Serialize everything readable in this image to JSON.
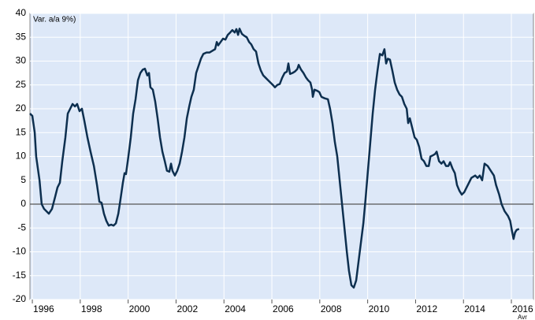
{
  "chart_data": {
    "type": "line",
    "ylabel": "Var. a/a 9%)",
    "annotation": "Avr",
    "color": "#0d2f4f",
    "grid": true,
    "xlim": [
      1995.9,
      2016.92
    ],
    "ylim": [
      -20,
      40
    ],
    "xticks": [
      1996,
      1998,
      2000,
      2002,
      2004,
      2006,
      2008,
      2010,
      2012,
      2014,
      2016
    ],
    "yticks": [
      -20,
      -15,
      -10,
      -5,
      0,
      5,
      10,
      15,
      20,
      25,
      30,
      35,
      40
    ],
    "x": [
      1995.9,
      1996.0,
      1996.1,
      1996.16,
      1996.3,
      1996.39,
      1996.49,
      1996.69,
      1996.82,
      1996.95,
      1997.05,
      1997.15,
      1997.25,
      1997.38,
      1997.48,
      1997.58,
      1997.68,
      1997.78,
      1997.87,
      1997.97,
      1998.07,
      1998.17,
      1998.3,
      1998.43,
      1998.57,
      1998.7,
      1998.8,
      1998.89,
      1998.99,
      1999.09,
      1999.19,
      1999.29,
      1999.39,
      1999.49,
      1999.59,
      1999.68,
      1999.78,
      1999.85,
      1999.91,
      2000.01,
      2000.11,
      2000.21,
      2000.31,
      2000.41,
      2000.51,
      2000.61,
      2000.7,
      2000.8,
      2000.87,
      2000.93,
      2001.03,
      2001.13,
      2001.23,
      2001.33,
      2001.43,
      2001.53,
      2001.62,
      2001.72,
      2001.79,
      2001.85,
      2001.95,
      2002.05,
      2002.15,
      2002.25,
      2002.35,
      2002.45,
      2002.55,
      2002.64,
      2002.74,
      2002.84,
      2002.94,
      2003.04,
      2003.14,
      2003.27,
      2003.4,
      2003.53,
      2003.63,
      2003.7,
      2003.76,
      2003.86,
      2003.96,
      2004.06,
      2004.16,
      2004.26,
      2004.35,
      2004.45,
      2004.52,
      2004.59,
      2004.65,
      2004.75,
      2004.85,
      2004.95,
      2005.05,
      2005.14,
      2005.24,
      2005.34,
      2005.44,
      2005.54,
      2005.64,
      2005.74,
      2005.84,
      2005.94,
      2006.04,
      2006.13,
      2006.23,
      2006.33,
      2006.43,
      2006.53,
      2006.63,
      2006.69,
      2006.76,
      2006.86,
      2006.96,
      2007.06,
      2007.12,
      2007.22,
      2007.32,
      2007.42,
      2007.51,
      2007.61,
      2007.68,
      2007.71,
      2007.78,
      2007.88,
      2007.98,
      2008.07,
      2008.2,
      2008.34,
      2008.43,
      2008.53,
      2008.63,
      2008.73,
      2008.83,
      2008.93,
      2009.03,
      2009.13,
      2009.22,
      2009.32,
      2009.42,
      2009.52,
      2009.62,
      2009.72,
      2009.82,
      2009.91,
      2010.01,
      2010.11,
      2010.21,
      2010.31,
      2010.41,
      2010.51,
      2010.61,
      2010.7,
      2010.77,
      2010.84,
      2010.93,
      2011.03,
      2011.13,
      2011.23,
      2011.33,
      2011.43,
      2011.53,
      2011.63,
      2011.69,
      2011.76,
      2011.86,
      2011.96,
      2012.05,
      2012.15,
      2012.25,
      2012.35,
      2012.45,
      2012.55,
      2012.62,
      2012.71,
      2012.81,
      2012.88,
      2012.98,
      2013.08,
      2013.17,
      2013.27,
      2013.37,
      2013.44,
      2013.54,
      2013.64,
      2013.73,
      2013.83,
      2013.93,
      2014.03,
      2014.13,
      2014.23,
      2014.33,
      2014.49,
      2014.59,
      2014.68,
      2014.78,
      2014.88,
      2015.01,
      2015.14,
      2015.27,
      2015.36,
      2015.49,
      2015.59,
      2015.72,
      2015.86,
      2015.95,
      2016.02,
      2016.09,
      2016.15,
      2016.22,
      2016.32
    ],
    "values": [
      19,
      18.5,
      15,
      10,
      5,
      0,
      -1,
      -2,
      -1,
      1.5,
      3.5,
      4.5,
      9,
      14,
      19,
      20,
      21,
      20.5,
      21,
      19.5,
      20,
      17.5,
      14,
      11,
      8,
      4,
      0.5,
      0.3,
      -2,
      -3.5,
      -4.5,
      -4.3,
      -4.5,
      -4,
      -2,
      1,
      4.5,
      6.5,
      6.3,
      10,
      14,
      19,
      22,
      26,
      27.5,
      28.2,
      28.4,
      27,
      27.5,
      24.5,
      24,
      21.5,
      18,
      14,
      11,
      9,
      7,
      6.8,
      8.5,
      7,
      6,
      7,
      8.5,
      11,
      14,
      18,
      20.5,
      22.5,
      24,
      27.5,
      29,
      30.5,
      31.5,
      31.8,
      31.8,
      32.2,
      32.5,
      34,
      33.3,
      34,
      34.7,
      34.5,
      35.5,
      36,
      36.5,
      36,
      36.7,
      35.5,
      36.8,
      35.7,
      35.3,
      35,
      34,
      33.5,
      32.5,
      32,
      29.5,
      28,
      27,
      26.5,
      26,
      25.5,
      25,
      24.5,
      25,
      25.2,
      26.5,
      27.5,
      27.8,
      29.5,
      27.3,
      27.5,
      27.8,
      28.3,
      29.2,
      28.2,
      27.5,
      26.6,
      26,
      25.5,
      24,
      22.5,
      24,
      23.8,
      23.5,
      22.5,
      22.2,
      22,
      20,
      17,
      13,
      10,
      5,
      0,
      -5,
      -10,
      -14,
      -17,
      -17.5,
      -16,
      -12,
      -8,
      -4,
      1,
      7,
      13,
      19,
      24,
      28,
      31.5,
      31.2,
      32.5,
      29.5,
      30.5,
      30.3,
      28,
      25.5,
      24,
      23,
      22.5,
      21,
      20,
      17,
      18,
      16,
      14,
      13.5,
      12,
      9.5,
      9,
      8,
      8,
      10,
      10.2,
      10.5,
      11,
      9,
      8.5,
      9,
      8,
      8,
      8.8,
      7.5,
      6.5,
      4,
      2.8,
      2,
      2.5,
      3.5,
      4.5,
      5.5,
      6,
      5.5,
      6,
      5,
      8.5,
      8,
      7,
      6,
      4,
      2,
      0,
      -1.5,
      -2.5,
      -3.5,
      -5.5,
      -7.3,
      -6,
      -5.4,
      -5.2
    ]
  }
}
